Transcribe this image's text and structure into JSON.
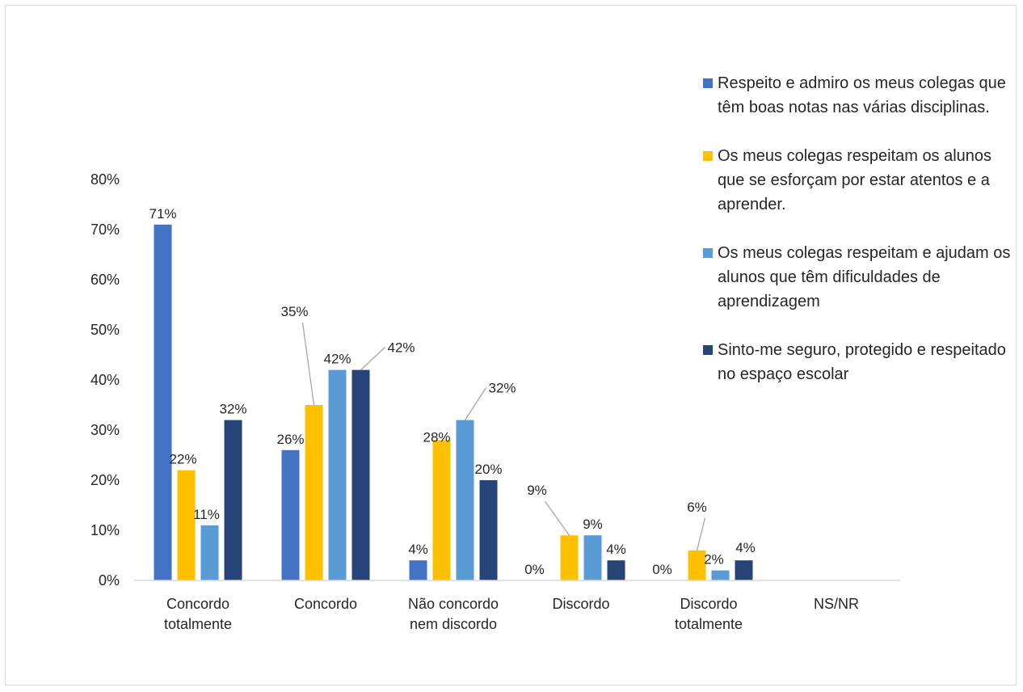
{
  "chart_data": {
    "type": "bar",
    "categories": [
      [
        "Concordo",
        "totalmente"
      ],
      [
        "Concordo"
      ],
      [
        "Não concordo",
        "nem discordo"
      ],
      [
        "Discordo"
      ],
      [
        "Discordo",
        "totalmente"
      ],
      [
        "NS/NR"
      ]
    ],
    "series": [
      {
        "name": "Respeito e admiro os meus colegas que têm boas notas nas várias disciplinas.",
        "color": "#4472c4",
        "values": [
          71,
          26,
          4,
          0,
          0,
          null
        ],
        "labels": [
          "71%",
          "26%",
          "4%",
          "0%",
          "0%",
          ""
        ]
      },
      {
        "name": "Os meus colegas respeitam os alunos que se esforçam por estar atentos e a aprender.",
        "color": "#ffc000",
        "values": [
          22,
          35,
          28,
          9,
          6,
          null
        ],
        "labels": [
          "22%",
          "35%",
          "28%",
          "9%",
          "6%",
          ""
        ]
      },
      {
        "name": "Os meus colegas respeitam e ajudam os alunos que têm dificuldades de aprendizagem",
        "color": "#5b9bd5",
        "values": [
          11,
          42,
          32,
          9,
          2,
          null
        ],
        "labels": [
          "11%",
          "42%",
          "32%",
          "9%",
          "2%",
          ""
        ]
      },
      {
        "name": "Sinto-me seguro, protegido e respeitado no espaço escolar",
        "color": "#264478",
        "values": [
          32,
          42,
          20,
          4,
          4,
          null
        ],
        "labels": [
          "32%",
          "42%",
          "20%",
          "4%",
          "4%",
          ""
        ]
      }
    ],
    "ylim": [
      0,
      80
    ],
    "yticks": [
      "0%",
      "10%",
      "20%",
      "30%",
      "40%",
      "50%",
      "60%",
      "70%",
      "80%"
    ],
    "legend_position": "right",
    "grid": false
  }
}
